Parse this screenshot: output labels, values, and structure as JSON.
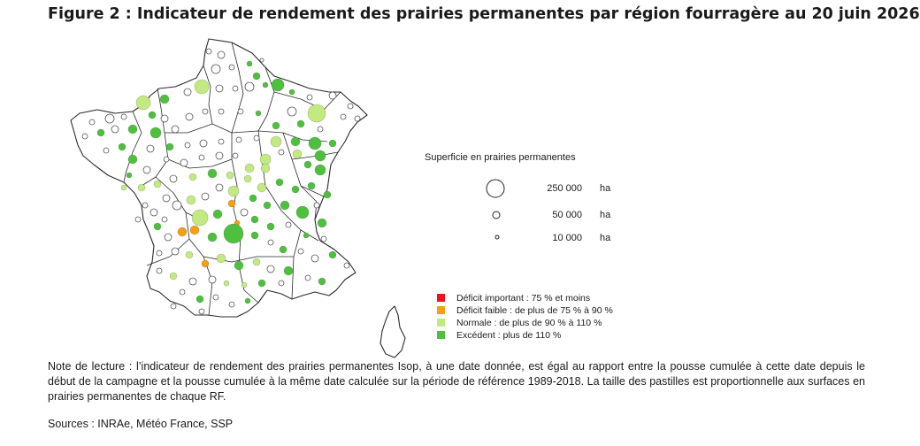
{
  "title": "Figure 2 : Indicateur de rendement des prairies permanentes par région fourragère au 20 juin 2026",
  "size_legend": {
    "title": "Superficie en prairies permanentes",
    "items": [
      {
        "value": "250 000",
        "unit": "ha"
      },
      {
        "value": "50 000",
        "unit": "ha"
      },
      {
        "value": "10 000",
        "unit": "ha"
      }
    ]
  },
  "color_legend": [
    {
      "label": "Déficit important : 75 % et moins",
      "color": "#e8161b"
    },
    {
      "label": "Déficit faible : de plus de 75 % à 90 %",
      "color": "#f59f12"
    },
    {
      "label": "Normale : de plus de 90 % à 110 %",
      "color": "#c3ea80"
    },
    {
      "label": "Excédent : plus de 110 %",
      "color": "#4ec03e"
    }
  ],
  "note": "Note de lecture : l’indicateur de rendement des prairies permanentes Isop, à une date donnée, est égal au rapport entre la pousse cumulée à cette date depuis le début de la campagne et la pousse cumulée à la même date calculée sur la période de référence 1989-2018. La taille des pastilles est proportionnelle aux surfaces en prairies permanentes de chaque RF.",
  "sources": "Sources : INRAe, Météo France, SSP"
}
